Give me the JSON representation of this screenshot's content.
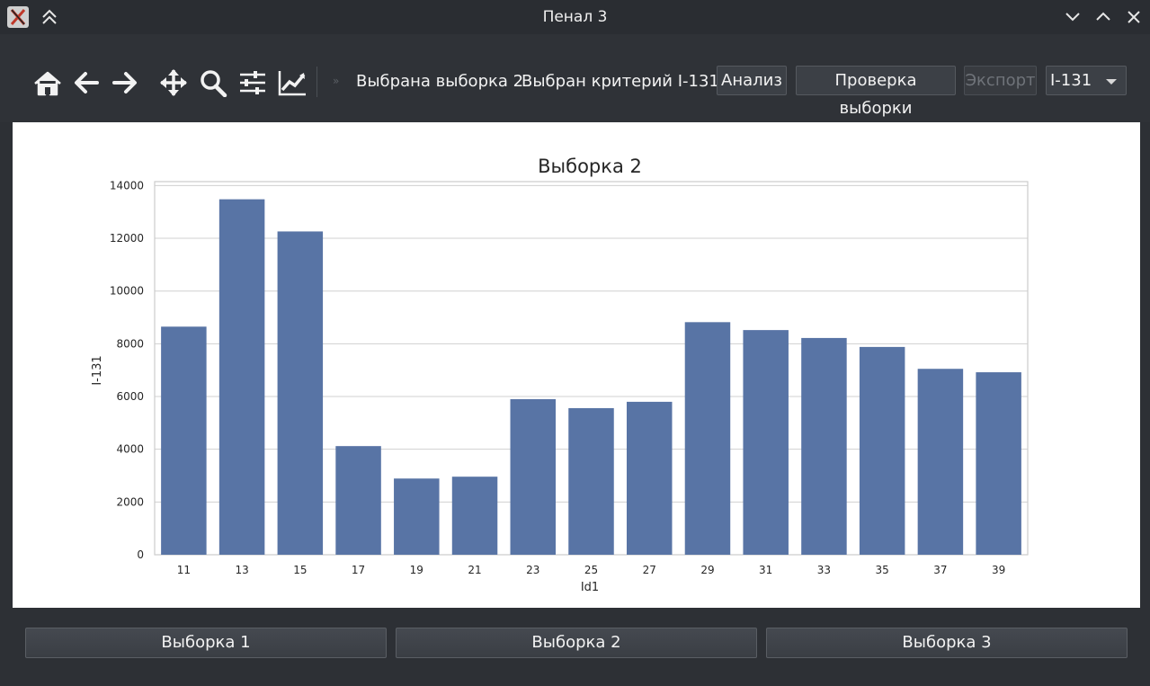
{
  "window": {
    "title": "Пенал 3"
  },
  "icons": {
    "app": "x11-app-icon",
    "shade": "double-chevron-up-icon",
    "minimize": "chevron-down-icon",
    "maximize": "chevron-up-icon",
    "close": "close-icon"
  },
  "toolbar": {
    "tools": [
      "home-icon",
      "back-arrow-icon",
      "forward-arrow-icon",
      "pan-move-icon",
      "zoom-magnifier-icon",
      "configure-subplots-icon",
      "edit-axis-curves-icon"
    ],
    "overflow": "»",
    "status_sample": "Выбрана выборка 2",
    "status_criterion": "Выбран критерий I-131",
    "analyze_label": "Анализ",
    "check_label": "Проверка выборки",
    "export_label": "Экспорт",
    "criterion_select": "I-131"
  },
  "chart_data": {
    "type": "bar",
    "title": "Выборка 2",
    "xlabel": "Id1",
    "ylabel": "I-131",
    "categories": [
      "11",
      "13",
      "15",
      "17",
      "19",
      "21",
      "23",
      "25",
      "27",
      "29",
      "31",
      "33",
      "35",
      "37",
      "39"
    ],
    "values": [
      8650,
      13480,
      12260,
      4120,
      2890,
      2960,
      5900,
      5560,
      5800,
      8820,
      8520,
      8220,
      7880,
      7050,
      6920
    ],
    "ylim": [
      0,
      14150
    ],
    "yticks": [
      0,
      2000,
      4000,
      6000,
      8000,
      10000,
      12000,
      14000
    ],
    "grid": "horizontal",
    "bar_color": "#5874a5"
  },
  "bottom": {
    "sample1": "Выборка 1",
    "sample2": "Выборка 2",
    "sample3": "Выборка 3"
  }
}
